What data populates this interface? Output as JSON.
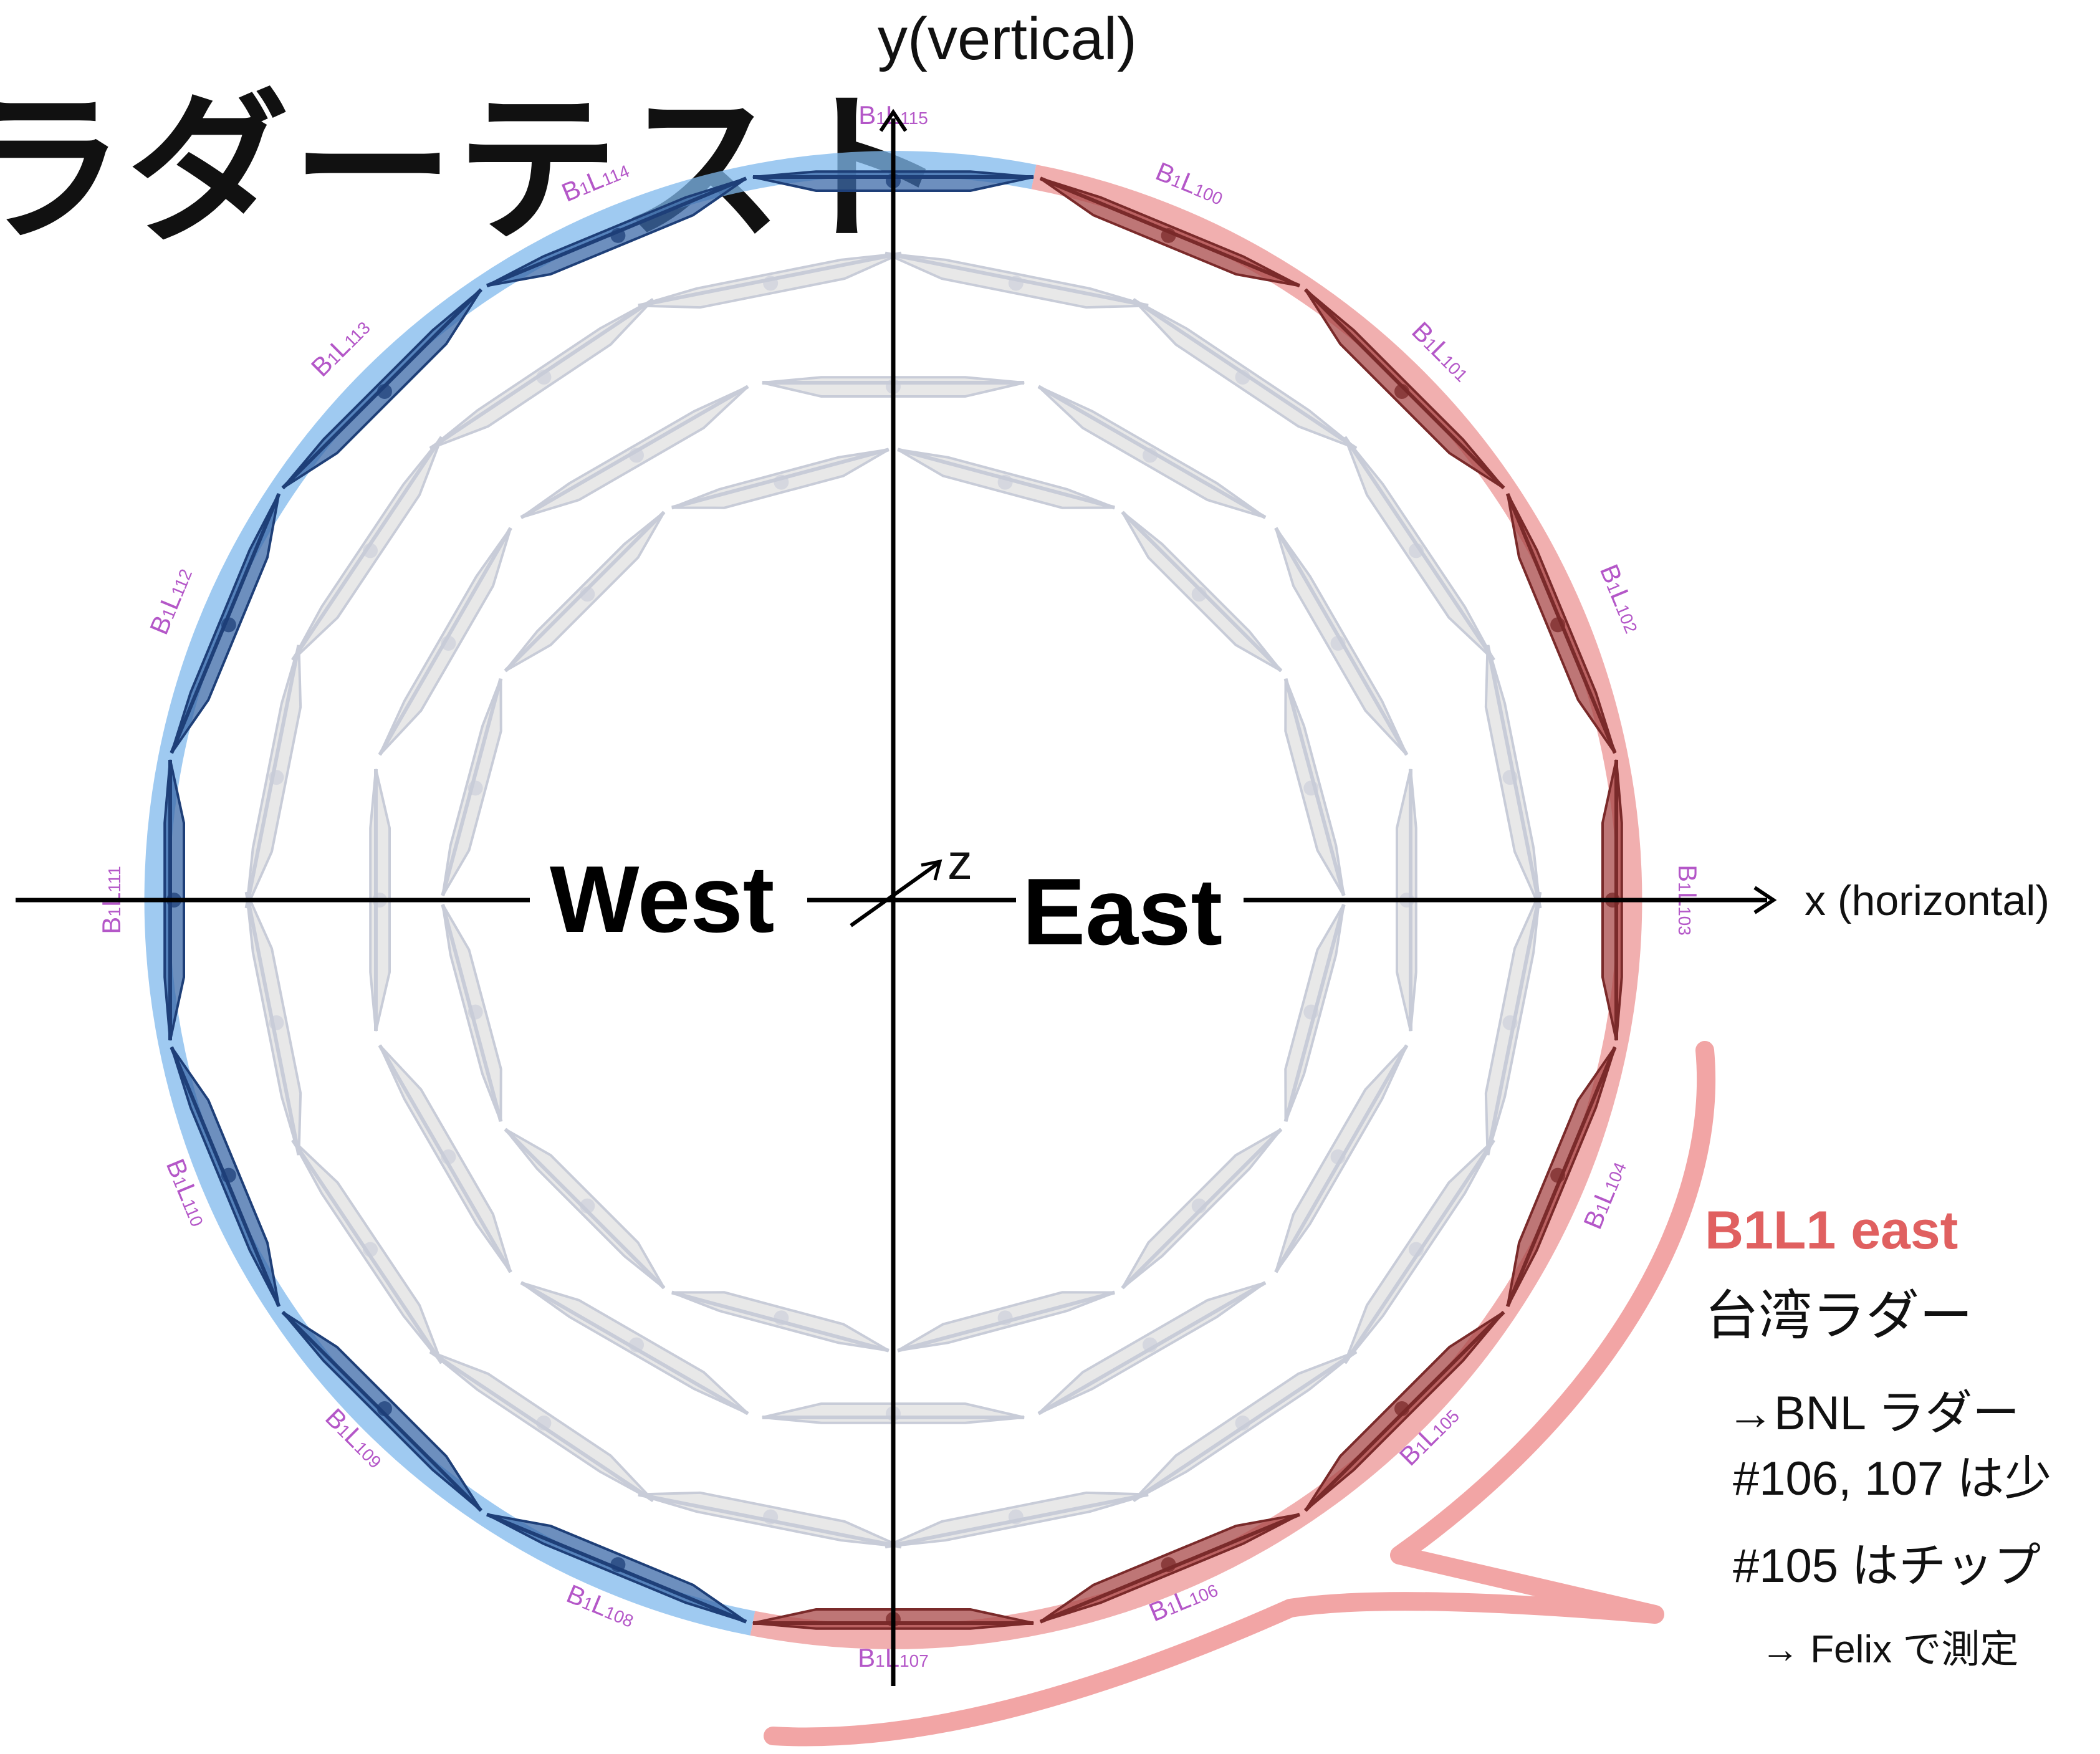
{
  "slide": {
    "title": "ラダーテスト"
  },
  "axes": {
    "y_label": "y(vertical)",
    "x_label": "x (horizontal)",
    "z_label": "z"
  },
  "regions": {
    "west_label": "West",
    "east_label": "East",
    "west_color": "#7fb8ec",
    "east_color": "#ec9494"
  },
  "ladders": [
    {
      "id": "B1L100",
      "sub": "100",
      "side": "east"
    },
    {
      "id": "B1L101",
      "sub": "101",
      "side": "east"
    },
    {
      "id": "B1L102",
      "sub": "102",
      "side": "east"
    },
    {
      "id": "B1L103",
      "sub": "103",
      "side": "east"
    },
    {
      "id": "B1L104",
      "sub": "104",
      "side": "east"
    },
    {
      "id": "B1L105",
      "sub": "105",
      "side": "east"
    },
    {
      "id": "B1L106",
      "sub": "106",
      "side": "east"
    },
    {
      "id": "B1L107",
      "sub": "107",
      "side": "east"
    },
    {
      "id": "B1L108",
      "sub": "108",
      "side": "west"
    },
    {
      "id": "B1L109",
      "sub": "109",
      "side": "west"
    },
    {
      "id": "B1L110",
      "sub": "110",
      "side": "west"
    },
    {
      "id": "B1L111",
      "sub": "111",
      "side": "west"
    },
    {
      "id": "B1L112",
      "sub": "112",
      "side": "west"
    },
    {
      "id": "B1L113",
      "sub": "113",
      "side": "west"
    },
    {
      "id": "B1L114",
      "sub": "114",
      "side": "west"
    },
    {
      "id": "B1L115",
      "sub": "115",
      "side": "west"
    }
  ],
  "callout": {
    "title": "B1L1 east",
    "line1": "台湾ラダー",
    "line2": "→BNL ラダー",
    "line3": "#106, 107 は少",
    "line4": "#105 はチップ",
    "line5": "→ Felix で測定",
    "color": "#e06060"
  }
}
